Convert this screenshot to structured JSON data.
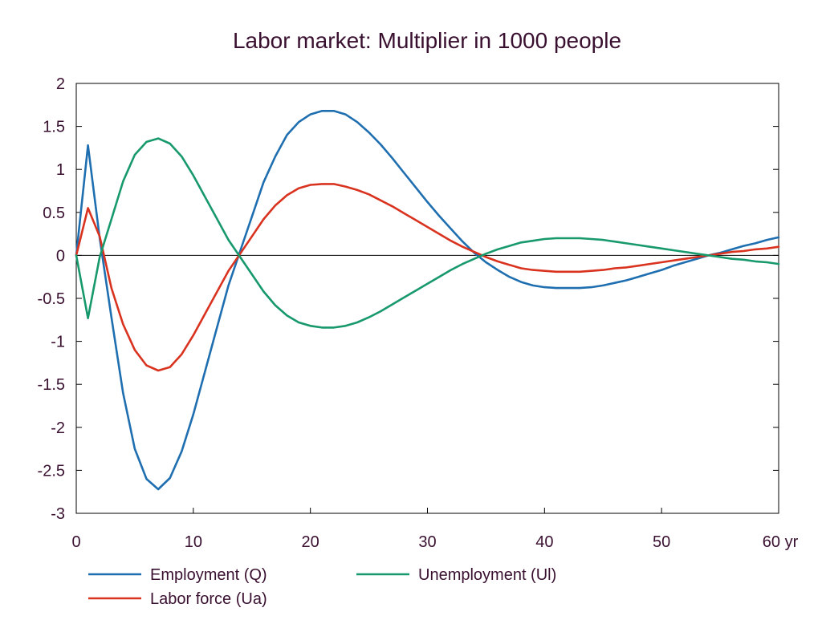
{
  "chart_data": {
    "type": "line",
    "title": "Labor market: Multiplier in 1000 people",
    "xlabel": "",
    "ylabel": "",
    "x_unit": "yr",
    "xlim": [
      0,
      60
    ],
    "ylim": [
      -3,
      2
    ],
    "x_ticks": [
      0,
      10,
      20,
      30,
      40,
      50,
      60
    ],
    "x_tick_labels": [
      "0",
      "10",
      "20",
      "30",
      "40",
      "50",
      "60 yr"
    ],
    "y_ticks": [
      2,
      1.5,
      1,
      0.5,
      0,
      -0.5,
      -1,
      -1.5,
      -2,
      -2.5,
      -3
    ],
    "y_tick_labels": [
      "2",
      "1.5",
      "1",
      "0.5",
      "0",
      "-0.5",
      "-1",
      "-1.5",
      "-2",
      "-2.5",
      "-3"
    ],
    "zero_line": true,
    "grid": false,
    "legend_position": "bottom",
    "series": [
      {
        "name": "Employment (Q)",
        "color": "#1f6fb0",
        "x": [
          0,
          1,
          2,
          3,
          4,
          5,
          6,
          7,
          8,
          9,
          10,
          11,
          12,
          13,
          14,
          15,
          16,
          17,
          18,
          19,
          20,
          21,
          22,
          23,
          24,
          25,
          26,
          27,
          28,
          29,
          30,
          31,
          32,
          33,
          34,
          35,
          36,
          37,
          38,
          39,
          40,
          41,
          42,
          43,
          44,
          45,
          46,
          47,
          48,
          49,
          50,
          51,
          52,
          53,
          54,
          55,
          56,
          57,
          58,
          59,
          60
        ],
        "values": [
          0,
          1.28,
          0.2,
          -0.72,
          -1.6,
          -2.25,
          -2.6,
          -2.72,
          -2.59,
          -2.28,
          -1.85,
          -1.35,
          -0.85,
          -0.35,
          0.05,
          0.45,
          0.85,
          1.15,
          1.4,
          1.55,
          1.64,
          1.68,
          1.68,
          1.64,
          1.55,
          1.43,
          1.29,
          1.13,
          0.96,
          0.79,
          0.62,
          0.46,
          0.31,
          0.16,
          0.03,
          -0.08,
          -0.17,
          -0.25,
          -0.31,
          -0.35,
          -0.37,
          -0.38,
          -0.38,
          -0.38,
          -0.37,
          -0.35,
          -0.32,
          -0.29,
          -0.25,
          -0.21,
          -0.17,
          -0.12,
          -0.08,
          -0.04,
          0.0,
          0.03,
          0.07,
          0.11,
          0.14,
          0.18,
          0.21
        ]
      },
      {
        "name": "Labor force (Ua)",
        "color": "#d93320",
        "x": [
          0,
          1,
          2,
          3,
          4,
          5,
          6,
          7,
          8,
          9,
          10,
          11,
          12,
          13,
          14,
          15,
          16,
          17,
          18,
          19,
          20,
          21,
          22,
          23,
          24,
          25,
          26,
          27,
          28,
          29,
          30,
          31,
          32,
          33,
          34,
          35,
          36,
          37,
          38,
          39,
          40,
          41,
          42,
          43,
          44,
          45,
          46,
          47,
          48,
          49,
          50,
          51,
          52,
          53,
          54,
          55,
          56,
          57,
          58,
          59,
          60
        ],
        "values": [
          0,
          0.55,
          0.22,
          -0.38,
          -0.8,
          -1.1,
          -1.28,
          -1.34,
          -1.3,
          -1.15,
          -0.93,
          -0.68,
          -0.43,
          -0.18,
          0.02,
          0.22,
          0.42,
          0.58,
          0.7,
          0.78,
          0.82,
          0.83,
          0.83,
          0.8,
          0.76,
          0.71,
          0.64,
          0.57,
          0.49,
          0.41,
          0.33,
          0.25,
          0.17,
          0.1,
          0.04,
          -0.02,
          -0.07,
          -0.11,
          -0.15,
          -0.17,
          -0.18,
          -0.19,
          -0.19,
          -0.19,
          -0.18,
          -0.17,
          -0.15,
          -0.14,
          -0.12,
          -0.1,
          -0.08,
          -0.06,
          -0.04,
          -0.02,
          0.0,
          0.02,
          0.04,
          0.05,
          0.07,
          0.08,
          0.1
        ]
      },
      {
        "name": "Unemployment (Ul)",
        "color": "#17996b",
        "x": [
          0,
          1,
          2,
          3,
          4,
          5,
          6,
          7,
          8,
          9,
          10,
          11,
          12,
          13,
          14,
          15,
          16,
          17,
          18,
          19,
          20,
          21,
          22,
          23,
          24,
          25,
          26,
          27,
          28,
          29,
          30,
          31,
          32,
          33,
          34,
          35,
          36,
          37,
          38,
          39,
          40,
          41,
          42,
          43,
          44,
          45,
          46,
          47,
          48,
          49,
          50,
          51,
          52,
          53,
          54,
          55,
          56,
          57,
          58,
          59,
          60
        ],
        "values": [
          0,
          -0.73,
          -0.02,
          0.42,
          0.86,
          1.17,
          1.32,
          1.36,
          1.3,
          1.15,
          0.93,
          0.68,
          0.43,
          0.18,
          -0.02,
          -0.22,
          -0.42,
          -0.58,
          -0.7,
          -0.78,
          -0.82,
          -0.84,
          -0.84,
          -0.82,
          -0.78,
          -0.72,
          -0.65,
          -0.57,
          -0.49,
          -0.41,
          -0.33,
          -0.25,
          -0.17,
          -0.1,
          -0.04,
          0.02,
          0.07,
          0.11,
          0.15,
          0.17,
          0.19,
          0.2,
          0.2,
          0.2,
          0.19,
          0.18,
          0.16,
          0.14,
          0.12,
          0.1,
          0.08,
          0.06,
          0.04,
          0.02,
          0.0,
          -0.02,
          -0.04,
          -0.05,
          -0.07,
          -0.08,
          -0.1
        ]
      }
    ]
  }
}
